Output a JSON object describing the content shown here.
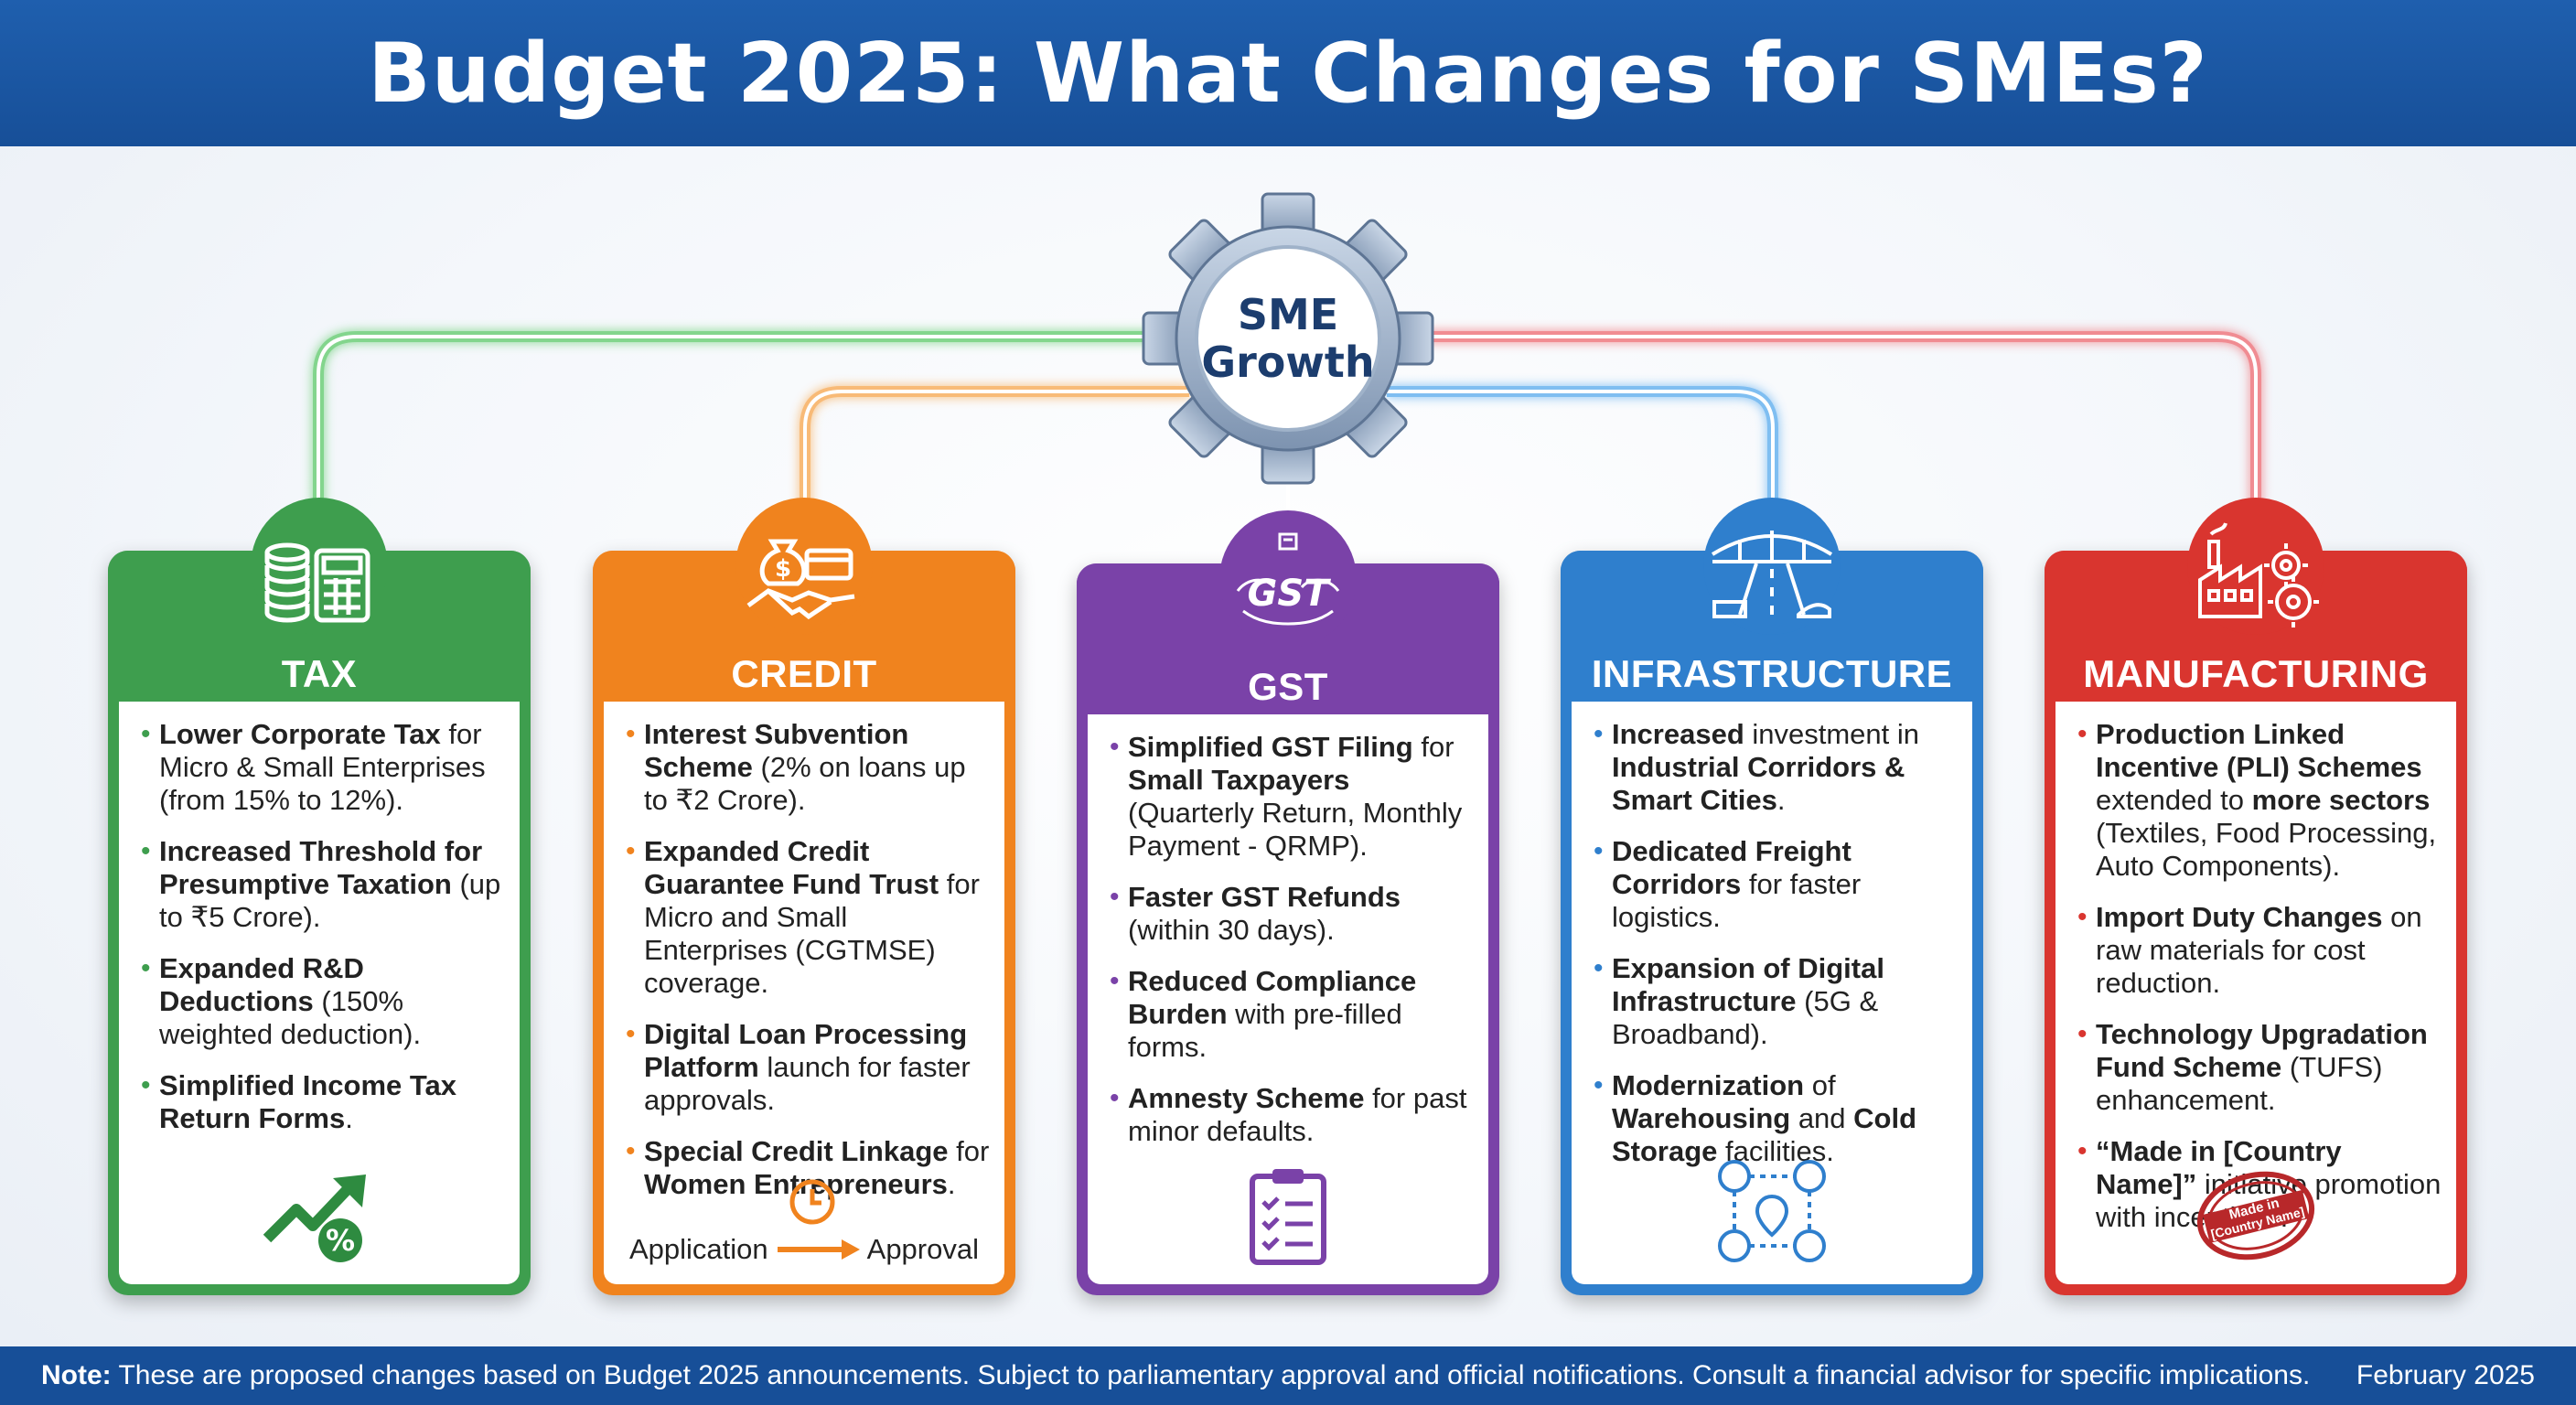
{
  "title": "Budget 2025: What Changes for SMEs?",
  "hub": {
    "line1": "SME",
    "line2": "Growth"
  },
  "colors": {
    "tax": "#3e9e4e",
    "credit": "#f0831e",
    "gst": "#7a42a8",
    "infra": "#2f7fcd",
    "mfg": "#d9352f",
    "header": "#1f5fae"
  },
  "cards": {
    "tax": {
      "title": "TAX",
      "icon": "coins-calculator-icon",
      "points": [
        {
          "b1": "Lower Corporate Tax",
          "t1": " for Micro & Small Enterprises (from 15% to 12%)."
        },
        {
          "b1": "Increased Threshold for Presumptive Taxation",
          "t1": " (up to ₹5 Crore)."
        },
        {
          "b1": "Expanded R&D Deductions",
          "t1": " (150% weighted deduction)."
        },
        {
          "b1": "Simplified Income Tax Return Forms",
          "t1": "."
        }
      ],
      "bottom_icon": "growth-percent-icon",
      "percent": "%"
    },
    "credit": {
      "title": "CREDIT",
      "icon": "money-handshake-icon",
      "points": [
        {
          "b1": "Interest Subvention Scheme",
          "t1": " (2% on loans up to ₹2 Crore)."
        },
        {
          "b1": "Expanded Credit Guarantee Fund Trust",
          "t1": " for Micro and Small Enterprises (CGTMSE) coverage."
        },
        {
          "b1": "Digital Loan Processing Platform",
          "t1": " launch for faster approvals."
        },
        {
          "b1": "Special Credit Linkage",
          "t1": " for ",
          "b2": "Women Entrepreneurs",
          "t2": "."
        }
      ],
      "flow_from": "Application",
      "flow_to": "Approval"
    },
    "gst": {
      "title": "GST",
      "badge": "GST",
      "icon": "gst-emblem-icon",
      "points": [
        {
          "b1": "Simplified GST Filing",
          "t1": " for ",
          "b2": "Small Taxpayers",
          "t2": " (Quarterly Return, Monthly Payment - QRMP)."
        },
        {
          "b1": "Faster GST Refunds",
          "t1": " (within 30 days)."
        },
        {
          "b1": "Reduced Compliance Burden",
          "t1": " with pre-filled forms."
        },
        {
          "b1": "Amnesty Scheme",
          "t1": " for past minor defaults."
        }
      ],
      "bottom_icon": "checklist-clipboard-icon"
    },
    "infra": {
      "title": "INFRASTRUCTURE",
      "icon": "road-bridge-transport-icon",
      "points": [
        {
          "b1": "Increased",
          "t1": " investment in ",
          "b2": "Industrial Corridors & Smart Cities",
          "t2": "."
        },
        {
          "b1": "Dedicated Freight Corridors",
          "t1": " for faster logistics."
        },
        {
          "b1": "Expansion of Digital Infrastructure",
          "t1": " (5G & Broadband)."
        },
        {
          "b1": "Modernization",
          "t1": " of ",
          "b2": "Warehousing",
          "t2": " and ",
          "b3": "Cold Storage",
          "t3": " facilities."
        }
      ],
      "bottom_icon": "logistics-network-icon"
    },
    "mfg": {
      "title": "MANUFACTURING",
      "icon": "factory-gears-icon",
      "points": [
        {
          "b1": "Production Linked Incentive (PLI) Schemes",
          "t1": " extended to ",
          "b2": "more sectors",
          "t2": " (Textiles, Food Processing, Auto Components)."
        },
        {
          "b1": "Import Duty Changes",
          "t1": " on raw materials for cost reduction."
        },
        {
          "b1": "Technology Upgradation Fund Scheme",
          "t1": " (TUFS) enhancement."
        },
        {
          "b1": "“Made in [Country Name]”",
          "t1": " initiative promotion with incentives."
        }
      ],
      "stamp_line1": "Made in",
      "stamp_line2": "[Country Name]"
    }
  },
  "footer": {
    "note_label": "Note:",
    "note_text": " These are proposed changes based on Budget 2025 announcements. Subject to parliamentary approval and official notifications. Consult a financial advisor for specific implications.",
    "date": "February 2025"
  }
}
